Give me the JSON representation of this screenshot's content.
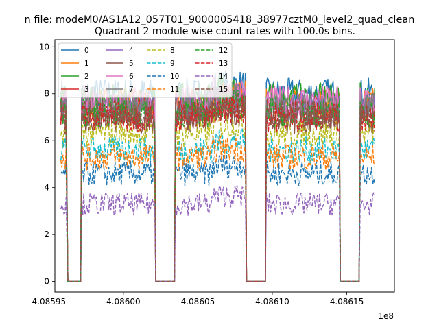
{
  "chart_data": {
    "type": "line",
    "suptitle": "n file: modeM0/AS1A12_057T01_9000005418_38977cztM0_level2_quad_clean",
    "title": "Quadrant 2 module wise count rates with 100.0s bins.",
    "xlabel": "",
    "ylabel": "",
    "x_offset_label": "1e8",
    "xlim": [
      4.085954,
      4.086182
    ],
    "ylim": [
      -0.45,
      10.3
    ],
    "xticks": [
      4.08595,
      4.086,
      4.08605,
      4.0861,
      4.08615
    ],
    "xtick_labels": [
      "4.08595",
      "4.08600",
      "4.08605",
      "4.08610",
      "4.08615"
    ],
    "yticks": [
      0,
      2,
      4,
      6,
      8,
      10
    ],
    "ytick_labels": [
      "0",
      "2",
      "4",
      "6",
      "8",
      "10"
    ],
    "grid": false,
    "legend": {
      "position": "top-left",
      "columns": 4
    },
    "segments": [
      {
        "x": [
          4.085958,
          4.085962
        ],
        "ramp": "in-out"
      },
      {
        "x": [
          4.085972,
          4.086021
        ],
        "ramp": "in-out"
      },
      {
        "x": [
          4.086035,
          4.086082
        ],
        "ramp": "in-out"
      },
      {
        "x": [
          4.086096,
          4.086145
        ],
        "ramp": "in-out"
      },
      {
        "x": [
          4.086159,
          4.086169
        ],
        "ramp": "in-out"
      }
    ],
    "gap_level": 0,
    "series": [
      {
        "name": "0",
        "color": "#1f77b4",
        "dash": "solid",
        "level": 8.0
      },
      {
        "name": "1",
        "color": "#ff7f0e",
        "dash": "solid",
        "level": 7.6
      },
      {
        "name": "2",
        "color": "#2ca02c",
        "dash": "solid",
        "level": 7.8
      },
      {
        "name": "3",
        "color": "#d62728",
        "dash": "solid",
        "level": 7.3
      },
      {
        "name": "4",
        "color": "#9467bd",
        "dash": "solid",
        "level": 7.5
      },
      {
        "name": "5",
        "color": "#8c564b",
        "dash": "solid",
        "level": 6.9
      },
      {
        "name": "6",
        "color": "#e377c2",
        "dash": "solid",
        "level": 7.7
      },
      {
        "name": "7",
        "color": "#7f7f7f",
        "dash": "solid",
        "level": 7.4
      },
      {
        "name": "8",
        "color": "#bcbd22",
        "dash": "dashed",
        "level": 6.3
      },
      {
        "name": "9",
        "color": "#17becf",
        "dash": "dashed",
        "level": 5.6
      },
      {
        "name": "10",
        "color": "#1f77b4",
        "dash": "dashed",
        "level": 4.6
      },
      {
        "name": "11",
        "color": "#ff7f0e",
        "dash": "dashed",
        "level": 5.3
      },
      {
        "name": "12",
        "color": "#2ca02c",
        "dash": "dashed",
        "level": 7.2
      },
      {
        "name": "13",
        "color": "#d62728",
        "dash": "dashed",
        "level": 7.0
      },
      {
        "name": "14",
        "color": "#9467bd",
        "dash": "dashed",
        "level": 3.3
      },
      {
        "name": "15",
        "color": "#8c564b",
        "dash": "dashed",
        "level": 7.1
      }
    ]
  }
}
